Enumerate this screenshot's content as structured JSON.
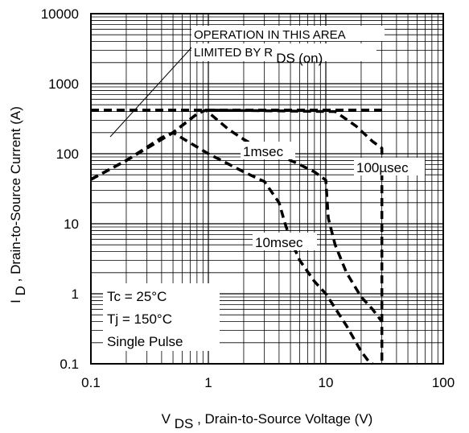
{
  "chart_data": {
    "type": "line",
    "x_scale": "log",
    "y_scale": "log",
    "xlim": [
      0.1,
      100
    ],
    "ylim": [
      0.1,
      10000
    ],
    "grid": true,
    "x_ticks": [
      "0.1",
      "1",
      "10",
      "100"
    ],
    "y_ticks": [
      "0.1",
      "1",
      "10",
      "100",
      "1000",
      "10000"
    ],
    "xlabel": {
      "main": "V",
      "sub": "DS",
      "rest": ", Drain-to-Source Voltage (V)"
    },
    "ylabel": {
      "main": "I",
      "sub": "D",
      "rest": ", Drain-to-Source Current (A)"
    },
    "annotation": {
      "line1": "OPERATION IN THIS AREA",
      "line2_main": "LIMITED BY R",
      "line2_sub": "DS",
      "line2_tail": "(on)"
    },
    "conditions": [
      "Tc = 25°C",
      "Tj = 150°C",
      "Single Pulse"
    ],
    "series": [
      {
        "name": "100µsec",
        "x": [
          0.1,
          0.2,
          0.5,
          0.8,
          0.95,
          12,
          18,
          25,
          30,
          30
        ],
        "y": [
          43,
          80,
          200,
          370,
          420,
          400,
          250,
          150,
          120,
          0.1
        ]
      },
      {
        "name": "1msec",
        "x": [
          0.1,
          0.2,
          0.5,
          0.8,
          0.95,
          1.5,
          2,
          2.5,
          4,
          6,
          8,
          10,
          10.5,
          12,
          15,
          20,
          25,
          30
        ],
        "y": [
          43,
          80,
          200,
          370,
          420,
          220,
          160,
          130,
          95,
          70,
          55,
          42,
          12,
          5,
          2,
          0.9,
          0.6,
          0.4
        ]
      },
      {
        "name": "10msec",
        "x": [
          0.1,
          0.2,
          0.4,
          0.5,
          1,
          2,
          3,
          4,
          4.5,
          5,
          6,
          8,
          10,
          15,
          20,
          23,
          25
        ],
        "y": [
          43,
          80,
          170,
          200,
          100,
          55,
          40,
          20,
          10,
          6,
          3,
          1.5,
          1,
          0.35,
          0.15,
          0.11,
          0.1
        ]
      },
      {
        "name": "RDS(on) limit",
        "x": [
          0.1,
          30
        ],
        "y": [
          420,
          420
        ]
      }
    ],
    "labels": {
      "one_ms": "1msec",
      "hundred_us": "100µsec",
      "ten_ms": "10msec"
    }
  }
}
